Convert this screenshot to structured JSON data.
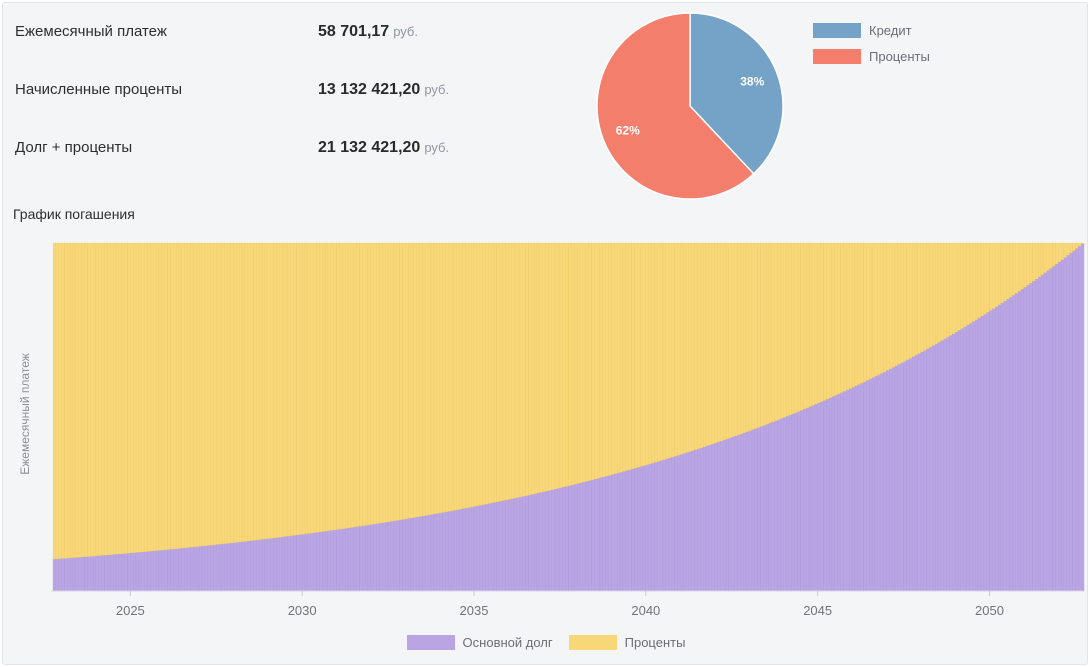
{
  "stats": [
    {
      "label": "Ежемесячный платеж",
      "value": "58 701,17",
      "unit": "руб."
    },
    {
      "label": "Начисленные проценты",
      "value": "13 132 421,20",
      "unit": "руб."
    },
    {
      "label": "Долг + проценты",
      "value": "21 132 421,20",
      "unit": "руб."
    }
  ],
  "section_title": "График погашения",
  "chart_data": [
    {
      "type": "pie",
      "slices": [
        {
          "label": "Кредит",
          "value": 38,
          "display": "38%",
          "color": "#74a3c7"
        },
        {
          "label": "Проценты",
          "value": 62,
          "display": "62%",
          "color": "#f47e6c"
        }
      ],
      "legend": "right"
    },
    {
      "type": "bar",
      "stacked": true,
      "title": "График погашения",
      "xlabel": "",
      "ylabel": "Ежемесячный платеж",
      "x_start": 2022.75,
      "x_end": 2052.75,
      "periods": 360,
      "x_ticks": [
        "2025",
        "2030",
        "2035",
        "2040",
        "2045",
        "2050"
      ],
      "x_tick_values": [
        2025,
        2030,
        2035,
        2040,
        2045,
        2050
      ],
      "payment": 58701.17,
      "series": [
        {
          "name": "Основной долг",
          "color": "#b9a5e3",
          "first_value": 5368.5,
          "last_value": 58558.3,
          "note": "principal portion grows geometrically (annuity)"
        },
        {
          "name": "Проценты",
          "color": "#f8d778",
          "first_value": 53332.7,
          "last_value": 142.9,
          "note": "interest portion = payment - principal"
        }
      ],
      "ylim": [
        0,
        58701.17
      ],
      "legend": "bottom"
    }
  ]
}
